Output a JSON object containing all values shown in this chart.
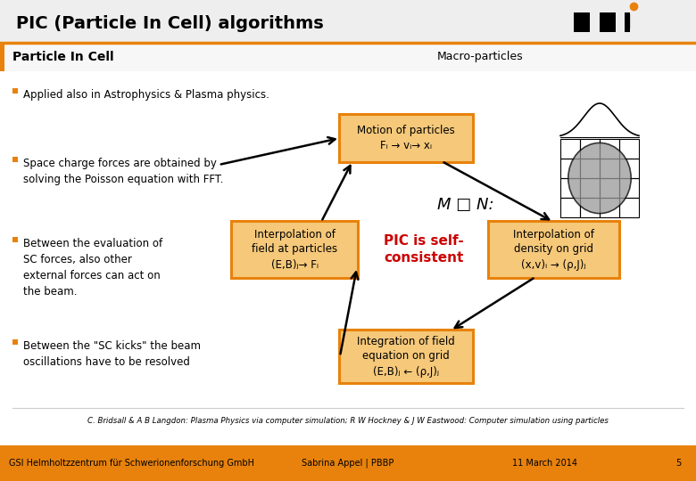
{
  "title": "PIC (Particle In Cell) algorithms",
  "bg_color": "#ffffff",
  "orange_color": "#E8820C",
  "section_title": "Particle In Cell",
  "macro_title": "Macro-particles",
  "macro_formula": "M □ N:",
  "bullet1": "Applied also in Astrophysics & Plasma physics.",
  "bullet2": "Space charge forces are obtained by\nsolving the Poisson equation with FFT.",
  "bullet3": "Between the evaluation of\nSC forces, also other\nexternal forces can act on\nthe beam.",
  "bullet4": "Between the \"SC kicks\" the beam\noscillations have to be resolved",
  "box1_text": "Motion of particles\nFᵢ → vᵢ→ xᵢ",
  "box2_text": "Interpolation of\nfield at particles\n(E,B)ⱼ→ Fᵢ",
  "box3_text": "PIC is self-\nconsistent",
  "box4_text": "Interpolation of\ndensity on grid\n(x,v)ᵢ → (ρ,J)ⱼ",
  "box5_text": "Integration of field\nequation on grid\n(E,B)ⱼ ← (ρ,J)ⱼ",
  "footer_left": "GSI Helmholtzzentrum für Schwerionenforschung GmbH",
  "footer_center": "Sabrina Appel | PBBP",
  "footer_right": "11 March 2014",
  "footer_num": "5",
  "citation": "C. Bridsall & A B Langdon: Plasma Physics via computer simulation; R W Hockney & J W Eastwood: Computer simulation using particles",
  "box_fill": "#F5C87A",
  "box_edge": "#E8820C"
}
